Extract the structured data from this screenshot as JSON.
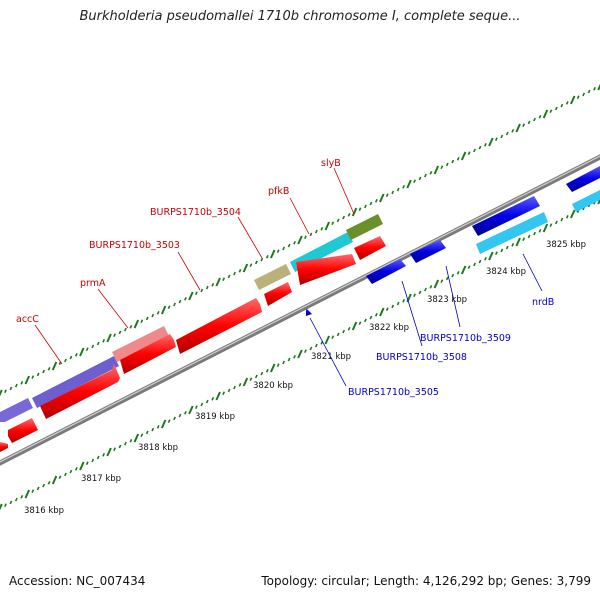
{
  "title": "Burkholderia pseudomallei 1710b chromosome I, complete seque...",
  "footer": {
    "accession": "Accession: NC_007434",
    "summary": "Topology: circular; Length: 4,126,292 bp; Genes: 3,799"
  },
  "colors": {
    "backbone": "#8a8a8a",
    "tick": "#1a7a1a",
    "forward_gene": "#ff0000",
    "reverse_gene": "#0000e6",
    "label_forward": "#cc0000",
    "label_reverse": "#0000cc"
  },
  "scale_labels": [
    "3816 kbp",
    "3817 kbp",
    "3818 kbp",
    "3819 kbp",
    "3820 kbp",
    "3821 kbp",
    "3822 kbp",
    "3823 kbp",
    "3824 kbp",
    "3825 kbp"
  ],
  "gene_labels_forward": [
    "accC",
    "prmA",
    "BURPS1710b_3503",
    "BURPS1710b_3504",
    "pfkB",
    "slyB"
  ],
  "gene_labels_reverse": [
    "BURPS1710b_3505",
    "BURPS1710b_3508",
    "BURPS1710b_3509",
    "nrdB"
  ]
}
